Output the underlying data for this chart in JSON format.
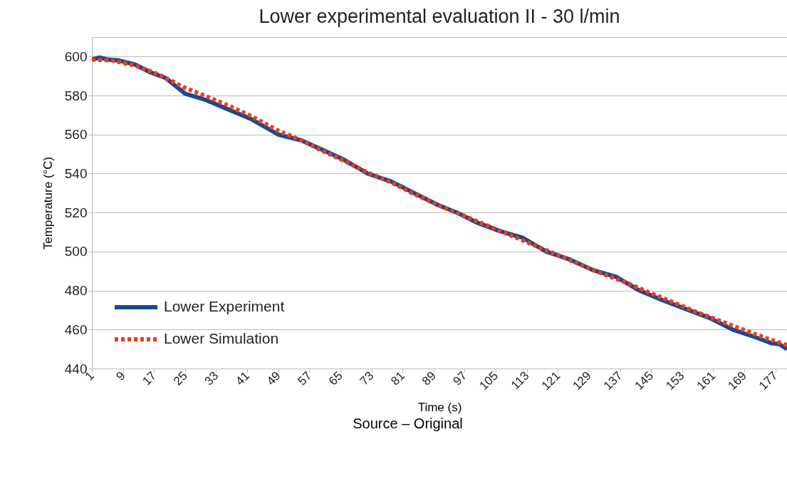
{
  "chart_data": {
    "type": "line",
    "title": "Lower experimental evaluation II - 30 l/min",
    "xlabel": "Time (s)",
    "ylabel": "Temperature (°C)",
    "annotations": [
      "Source – Original"
    ],
    "xlim": [
      1,
      180
    ],
    "xticks": [
      1,
      9,
      17,
      25,
      33,
      41,
      49,
      57,
      65,
      73,
      81,
      89,
      97,
      105,
      113,
      121,
      129,
      137,
      145,
      153,
      161,
      169,
      177
    ],
    "ylim": [
      440,
      610
    ],
    "yticks": [
      440,
      460,
      480,
      500,
      520,
      540,
      560,
      580,
      600
    ],
    "grid": "y",
    "legend": "bottom left",
    "series": [
      {
        "name": "Lower Experiment",
        "color": "#1b4a8a",
        "line_style": "solid",
        "x": [
          1,
          3,
          5,
          8,
          12,
          16,
          20,
          25,
          30,
          36,
          42,
          49,
          55,
          60,
          66,
          72,
          78,
          84,
          90,
          95,
          100,
          106,
          112,
          118,
          124,
          130,
          136,
          142,
          148,
          154,
          160,
          166,
          172,
          176,
          178,
          180
        ],
        "values": [
          598.5,
          599.5,
          598.5,
          598,
          596,
          592,
          589,
          581,
          578,
          573,
          568,
          560,
          557,
          552.5,
          547,
          540,
          536,
          530,
          524,
          520,
          515,
          510.5,
          507,
          500,
          496,
          490.5,
          487,
          480,
          475,
          470.5,
          466,
          460,
          456,
          453,
          452.5,
          450
        ]
      },
      {
        "name": "Lower Simulation",
        "color": "#f03c1e",
        "line_style": "dotted",
        "x": [
          1,
          6,
          12,
          18,
          25,
          30,
          36,
          42,
          49,
          55,
          60,
          66,
          72,
          78,
          84,
          90,
          96,
          102,
          108,
          114,
          120,
          126,
          132,
          138,
          144,
          150,
          156,
          162,
          168,
          174,
          180
        ],
        "values": [
          598.5,
          598,
          595.5,
          591,
          584,
          580,
          575,
          569.5,
          562,
          557,
          552,
          546.5,
          540.5,
          535.5,
          529.5,
          524,
          519,
          514,
          509,
          504,
          499,
          494,
          489,
          484.5,
          479.5,
          474.5,
          469.5,
          465,
          460.5,
          456,
          452
        ]
      }
    ]
  }
}
